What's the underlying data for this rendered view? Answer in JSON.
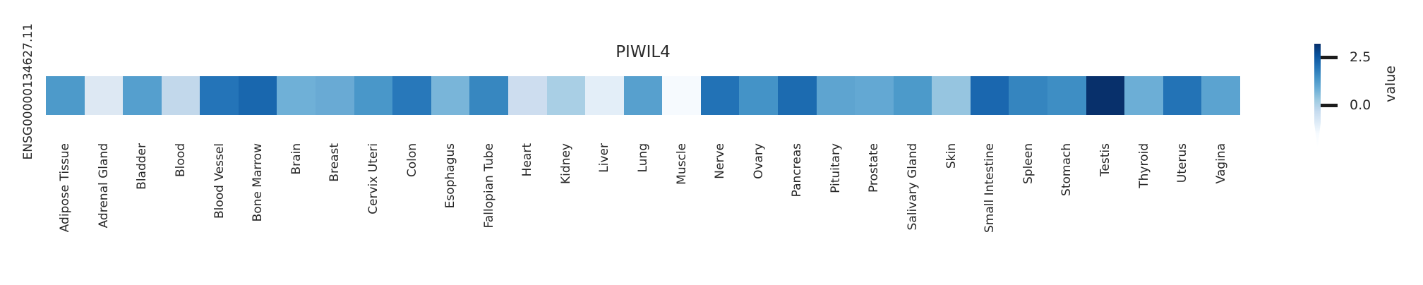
{
  "figure": {
    "title": "PIWIL4",
    "gene_id": "ENSG00000134627.11"
  },
  "chart_data": {
    "type": "heatmap",
    "title": "PIWIL4",
    "rows": [
      "ENSG00000134627.11"
    ],
    "categories": [
      "Adipose Tissue",
      "Adrenal Gland",
      "Bladder",
      "Blood",
      "Blood Vessel",
      "Bone Marrow",
      "Brain",
      "Breast",
      "Cervix Uteri",
      "Colon",
      "Esophagus",
      "Fallopian Tube",
      "Heart",
      "Kidney",
      "Liver",
      "Lung",
      "Muscle",
      "Nerve",
      "Ovary",
      "Pancreas",
      "Pituitary",
      "Prostate",
      "Salivary Gland",
      "Skin",
      "Small Intestine",
      "Spleen",
      "Stomach",
      "Testis",
      "Thyroid",
      "Uterus",
      "Vagina"
    ],
    "values": [
      1.3,
      -0.9,
      1.2,
      -0.2,
      2.0,
      2.3,
      0.9,
      0.9,
      1.4,
      1.9,
      0.7,
      1.7,
      -0.3,
      0.1,
      -1.0,
      1.2,
      -1.4,
      2.1,
      1.5,
      2.2,
      1.1,
      1.0,
      1.3,
      0.4,
      2.3,
      1.7,
      1.6,
      3.3,
      0.9,
      2.1,
      1.1
    ],
    "cell_colors": [
      "#4d9aca",
      "#dde8f3",
      "#559fce",
      "#c2d8eb",
      "#2474b8",
      "#1967ae",
      "#6fb0d7",
      "#69aad4",
      "#4997c9",
      "#2878ba",
      "#79b5d9",
      "#3787c0",
      "#cdddef",
      "#a9cfe5",
      "#e3eef8",
      "#57a0ce",
      "#f6fafe",
      "#2272b6",
      "#4493c7",
      "#1c6bb0",
      "#5ea4d0",
      "#63a8d3",
      "#4c9aca",
      "#96c5e0",
      "#1a67af",
      "#3585bf",
      "#3e8ec4",
      "#08306b",
      "#6caed6",
      "#2373b6",
      "#5ba3d0"
    ],
    "colorbar": {
      "label": "value",
      "colormap": "Blues",
      "ticks": [
        {
          "label": "2.5",
          "value": 2.5
        },
        {
          "label": "0.0",
          "value": 0.0
        }
      ],
      "gradient_stops": [
        [
          "#08306b",
          0
        ],
        [
          "#08519c",
          10.8
        ],
        [
          "#2171b5",
          21.6
        ],
        [
          "#4292c6",
          32.4
        ],
        [
          "#6baed6",
          43.2
        ],
        [
          "#9ecae1",
          54.1
        ],
        [
          "#c6dbef",
          64.9
        ],
        [
          "#deebf7",
          75.7
        ],
        [
          "#f7fbff",
          86.5
        ],
        [
          "#ffffff",
          100
        ]
      ]
    },
    "layout": {
      "legend_position": "right",
      "grid": false,
      "x_tick_rotation": 90
    }
  }
}
